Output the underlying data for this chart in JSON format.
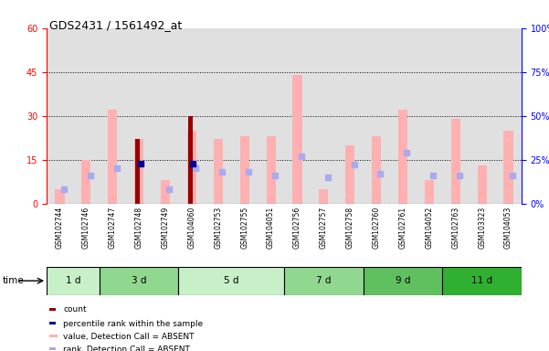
{
  "title": "GDS2431 / 1561492_at",
  "samples": [
    "GSM102744",
    "GSM102746",
    "GSM102747",
    "GSM102748",
    "GSM102749",
    "GSM104060",
    "GSM102753",
    "GSM102755",
    "GSM104051",
    "GSM102756",
    "GSM102757",
    "GSM102758",
    "GSM102760",
    "GSM102761",
    "GSM104052",
    "GSM102763",
    "GSM103323",
    "GSM104053"
  ],
  "time_groups": [
    {
      "label": "1 d",
      "indices": [
        0,
        1
      ],
      "color": "#c8f0c8"
    },
    {
      "label": "3 d",
      "indices": [
        2,
        3,
        4
      ],
      "color": "#90d890"
    },
    {
      "label": "5 d",
      "indices": [
        5,
        6,
        7,
        8
      ],
      "color": "#c8f0c8"
    },
    {
      "label": "7 d",
      "indices": [
        9,
        10,
        11
      ],
      "color": "#90d890"
    },
    {
      "label": "9 d",
      "indices": [
        12,
        13,
        14
      ],
      "color": "#60c060"
    },
    {
      "label": "11 d",
      "indices": [
        15,
        16,
        17
      ],
      "color": "#30b030"
    }
  ],
  "value_absent": [
    5,
    15,
    32,
    22,
    8,
    25,
    22,
    23,
    23,
    44,
    5,
    20,
    23,
    32,
    8,
    29,
    13,
    25
  ],
  "rank_absent": [
    8,
    16,
    20,
    null,
    8,
    20,
    18,
    18,
    16,
    27,
    15,
    22,
    17,
    29,
    16,
    16,
    null,
    16
  ],
  "count": [
    null,
    null,
    null,
    22,
    null,
    30,
    null,
    null,
    null,
    null,
    null,
    null,
    null,
    null,
    null,
    null,
    null,
    null
  ],
  "percentile": [
    null,
    null,
    null,
    23,
    null,
    23,
    null,
    null,
    null,
    null,
    null,
    null,
    null,
    null,
    null,
    null,
    null,
    null
  ],
  "left_yticks": [
    0,
    15,
    30,
    45,
    60
  ],
  "right_yticks": [
    0,
    25,
    50,
    75,
    100
  ],
  "ylim_left": [
    0,
    60
  ],
  "ylim_right": [
    0,
    100
  ],
  "color_count": "#990000",
  "color_percentile": "#000099",
  "color_value_absent": "#ffb0b0",
  "color_rank_absent": "#aaaaee",
  "bg_plot": "#e0e0e0",
  "bg_figure": "#ffffff",
  "dotted_lines": [
    15,
    30,
    45
  ]
}
